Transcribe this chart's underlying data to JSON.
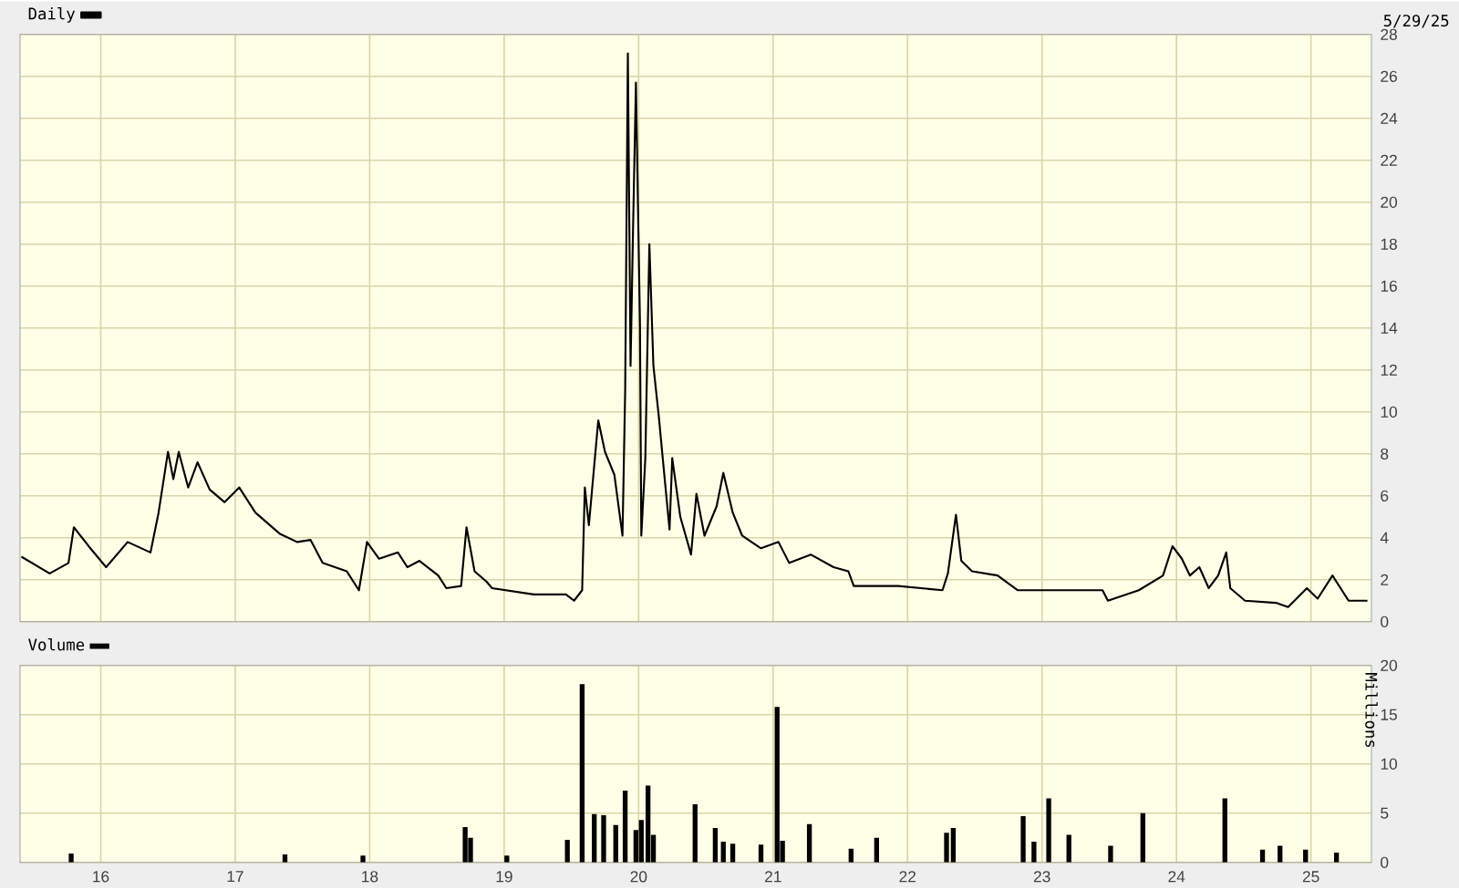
{
  "chart_data": [
    {
      "type": "line",
      "x": [
        15.41,
        15.62,
        15.76,
        15.8,
        15.91,
        16.04,
        16.2,
        16.37,
        16.43,
        16.5,
        16.54,
        16.58,
        16.65,
        16.72,
        16.81,
        16.92,
        17.03,
        17.15,
        17.33,
        17.46,
        17.56,
        17.65,
        17.83,
        17.92,
        17.98,
        18.07,
        18.21,
        18.28,
        18.37,
        18.51,
        18.57,
        18.68,
        18.72,
        18.78,
        18.87,
        18.91,
        19.22,
        19.46,
        19.52,
        19.58,
        19.6,
        19.63,
        19.7,
        19.75,
        19.82,
        19.88,
        19.9,
        19.92,
        19.94,
        19.96,
        19.98,
        20.01,
        20.02,
        20.05,
        20.08,
        20.11,
        20.15,
        20.2,
        20.23,
        20.25,
        20.31,
        20.39,
        20.43,
        20.49,
        20.58,
        20.63,
        20.7,
        20.77,
        20.91,
        21.04,
        21.12,
        21.28,
        21.45,
        21.56,
        21.6,
        21.93,
        22.26,
        22.3,
        22.36,
        22.4,
        22.48,
        22.67,
        22.82,
        23.11,
        23.45,
        23.49,
        23.72,
        23.9,
        23.97,
        24.04,
        24.1,
        24.17,
        24.24,
        24.31,
        24.37,
        24.4,
        24.51,
        24.74,
        24.83,
        24.97,
        25.05,
        25.16,
        25.19,
        25.28,
        25.42
      ],
      "series": [
        {
          "name": "Daily",
          "color": "#000000",
          "values": [
            3.1,
            2.3,
            2.8,
            4.5,
            3.6,
            2.6,
            3.8,
            3.3,
            5.2,
            8.1,
            6.8,
            8.1,
            6.4,
            7.6,
            6.3,
            5.7,
            6.4,
            5.2,
            4.2,
            3.8,
            3.9,
            2.8,
            2.4,
            1.5,
            3.8,
            3.0,
            3.3,
            2.6,
            2.9,
            2.2,
            1.6,
            1.7,
            4.5,
            2.4,
            1.9,
            1.6,
            1.3,
            1.3,
            1.0,
            1.5,
            6.4,
            4.6,
            9.6,
            8.1,
            7.0,
            4.1,
            11.0,
            27.1,
            12.2,
            19.2,
            25.7,
            14.2,
            4.1,
            7.8,
            18.0,
            12.2,
            9.8,
            6.4,
            4.4,
            7.8,
            5.0,
            3.2,
            6.1,
            4.1,
            5.5,
            7.1,
            5.2,
            4.1,
            3.5,
            3.8,
            2.8,
            3.2,
            2.6,
            2.4,
            1.7,
            1.7,
            1.5,
            2.3,
            5.1,
            2.9,
            2.4,
            2.2,
            1.5,
            1.5,
            1.5,
            1.0,
            1.5,
            2.2,
            3.6,
            3.0,
            2.2,
            2.6,
            1.6,
            2.2,
            3.3,
            1.6,
            1.0,
            0.9,
            0.7,
            1.6,
            1.1,
            2.2,
            1.9,
            1.0,
            1.0
          ]
        }
      ],
      "xlim": [
        15.4,
        25.45
      ],
      "xticks": [
        16,
        17,
        18,
        19,
        20,
        21,
        22,
        23,
        24,
        25
      ],
      "ylim": [
        0,
        28
      ],
      "yticks": [
        0,
        2,
        4,
        6,
        8,
        10,
        12,
        14,
        16,
        18,
        20,
        22,
        24,
        26,
        28
      ],
      "grid": true,
      "legend": "top left",
      "tick_labels": "y",
      "annotations": [
        "5/29/25"
      ]
    },
    {
      "type": "bar",
      "x": [
        15.78,
        17.37,
        17.95,
        18.71,
        18.75,
        19.02,
        19.47,
        19.58,
        19.67,
        19.74,
        19.83,
        19.9,
        19.98,
        20.02,
        20.07,
        20.11,
        20.42,
        20.57,
        20.63,
        20.7,
        20.91,
        21.03,
        21.07,
        21.27,
        21.58,
        21.77,
        22.29,
        22.34,
        22.86,
        22.94,
        23.05,
        23.2,
        23.51,
        23.75,
        24.36,
        24.64,
        24.77,
        24.96,
        25.19
      ],
      "series": [
        {
          "name": "Volume",
          "color": "#000000",
          "values": [
            0.9,
            0.8,
            0.7,
            3.6,
            2.5,
            0.7,
            2.3,
            18.1,
            4.9,
            4.8,
            3.8,
            7.3,
            3.3,
            4.3,
            7.8,
            2.8,
            5.9,
            3.5,
            2.1,
            1.9,
            1.8,
            15.8,
            2.2,
            3.9,
            1.4,
            2.5,
            3.0,
            3.5,
            4.7,
            2.1,
            6.5,
            2.8,
            1.7,
            5.0,
            6.5,
            1.3,
            1.7,
            1.3,
            1.0
          ]
        }
      ],
      "xlim": [
        15.4,
        25.45
      ],
      "xticks": [
        16,
        17,
        18,
        19,
        20,
        21,
        22,
        23,
        24,
        25
      ],
      "ylim": [
        0,
        20
      ],
      "yticks": [
        0,
        5,
        10,
        15,
        20
      ],
      "ylabel": "Millions",
      "grid": true,
      "legend": "top left"
    }
  ]
}
